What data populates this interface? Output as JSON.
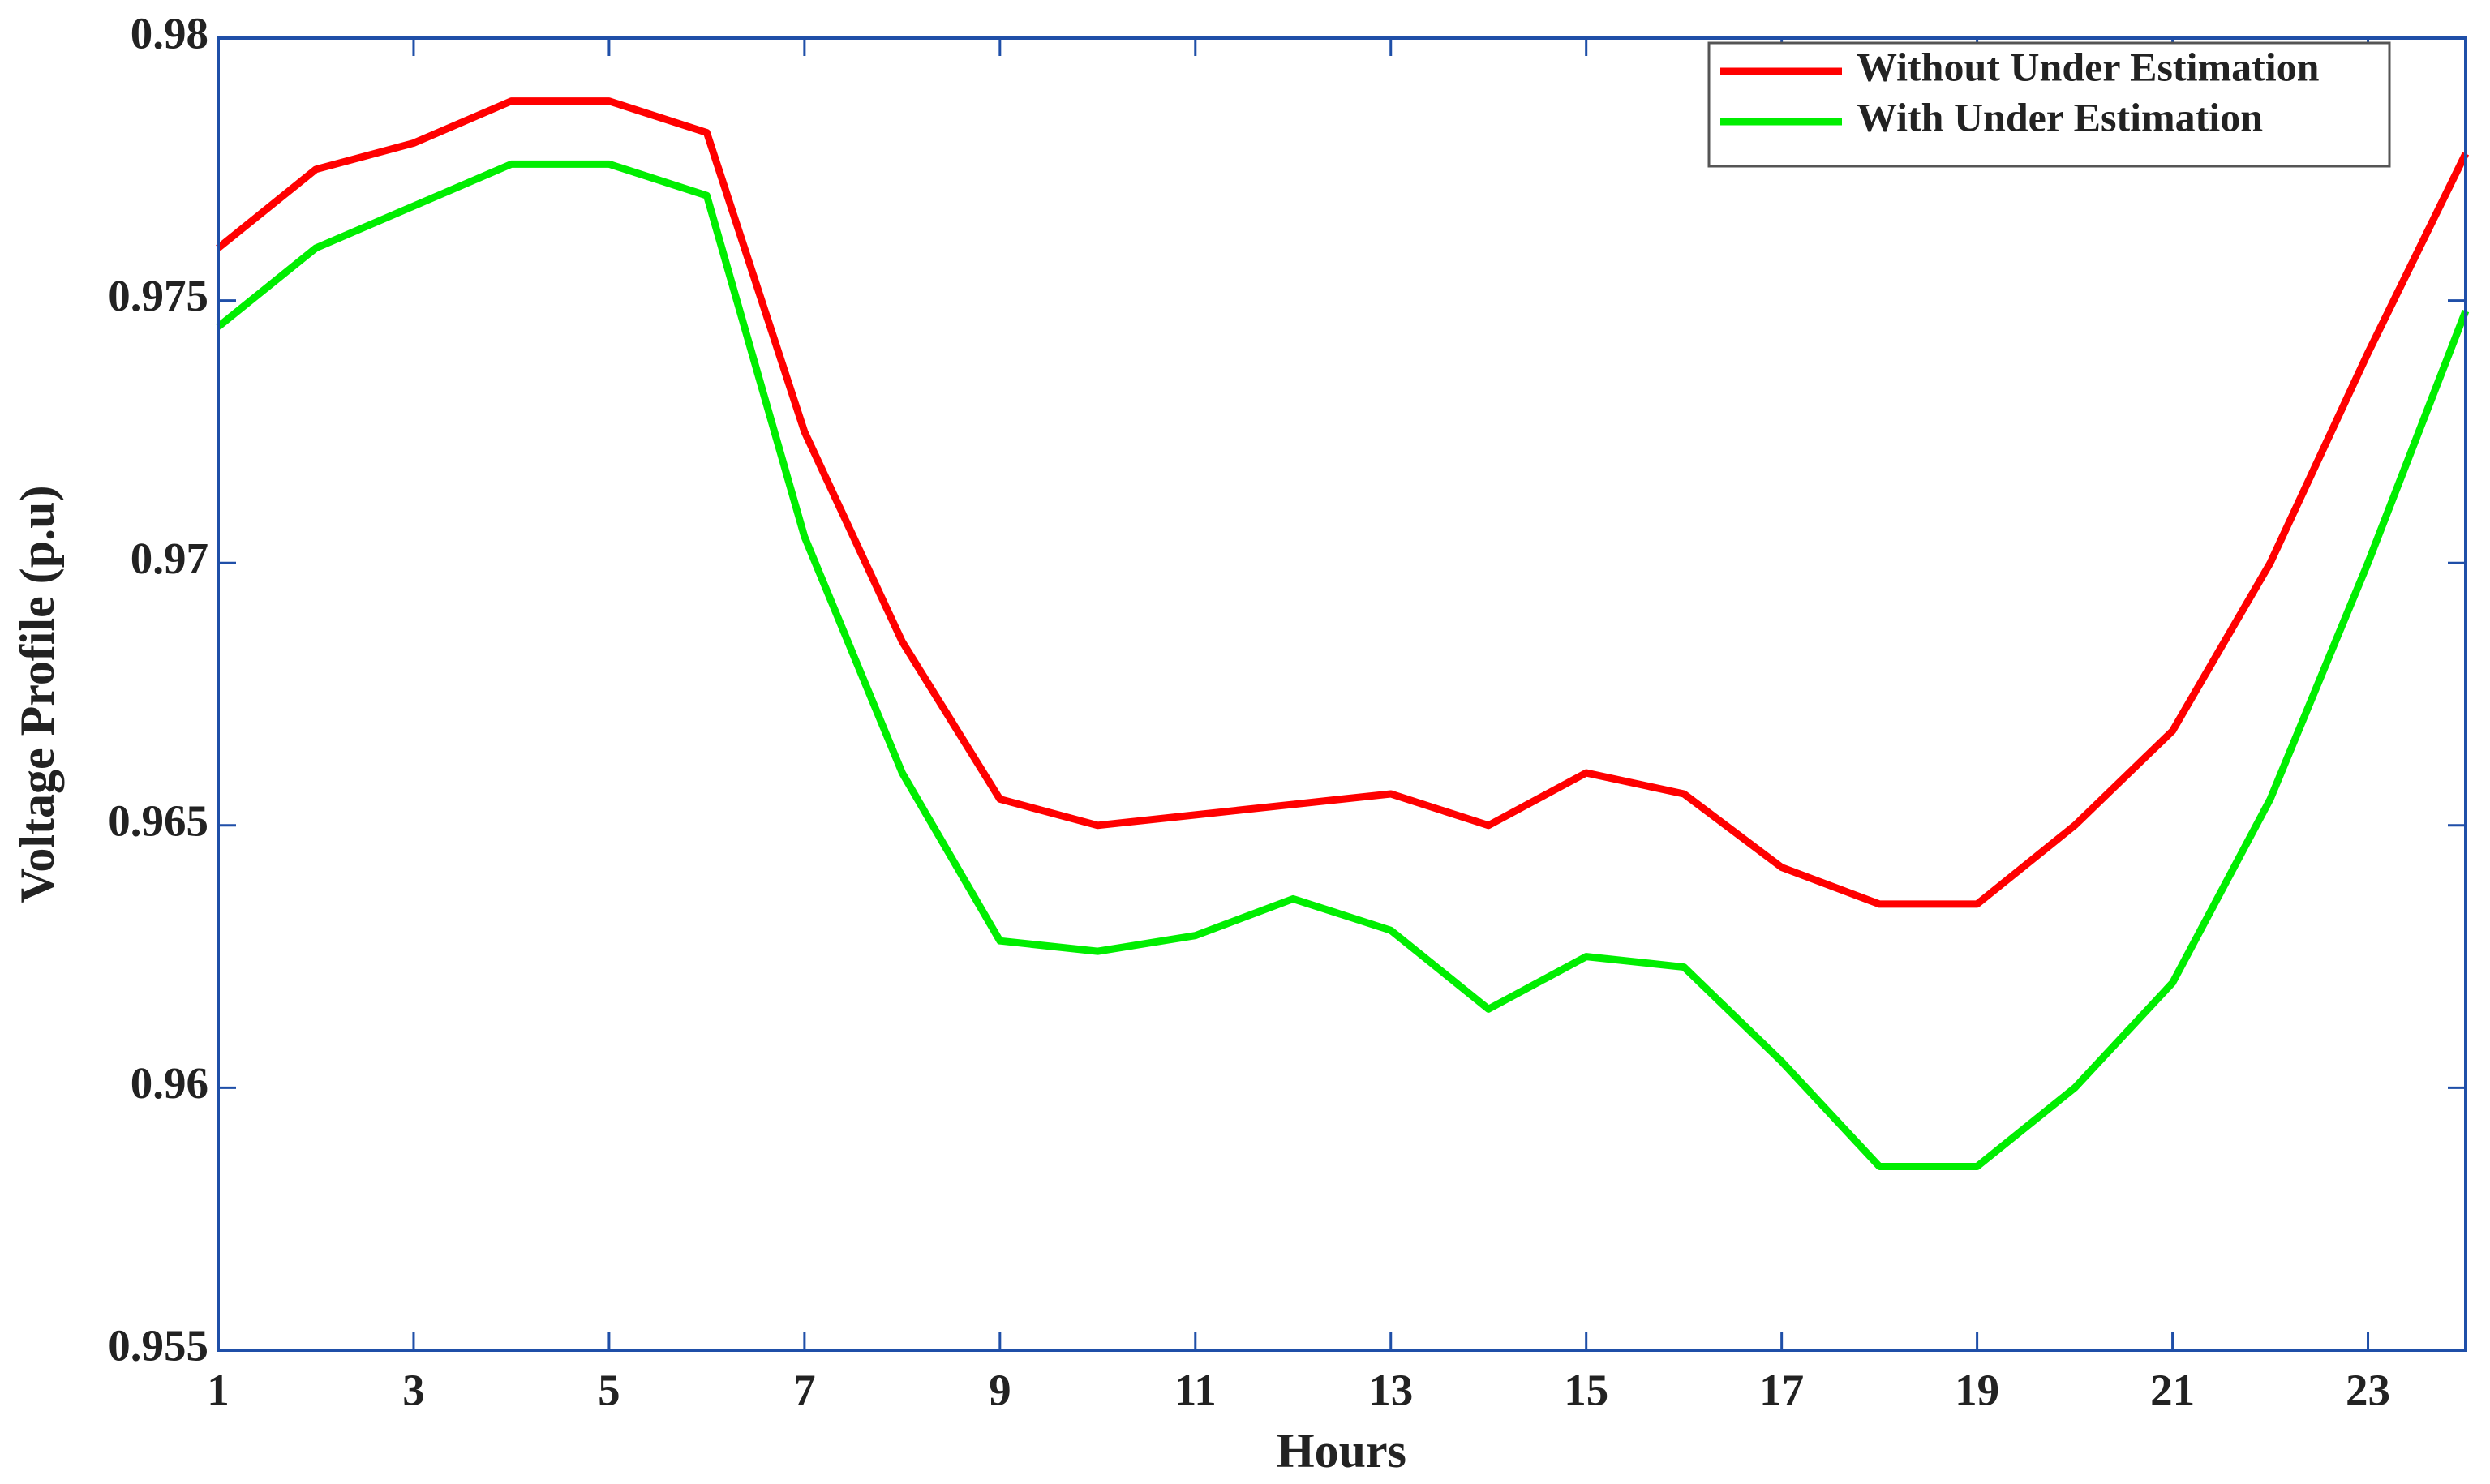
{
  "chart_data": {
    "type": "line",
    "x_label": "Hours",
    "y_label": "Voltage Profile (p.u)",
    "x": [
      1,
      2,
      3,
      4,
      5,
      6,
      7,
      8,
      9,
      10,
      11,
      12,
      13,
      14,
      15,
      16,
      17,
      18,
      19,
      20,
      21,
      22,
      23,
      24
    ],
    "series": [
      {
        "name": "Without Under Estimation",
        "color": "#ff0000",
        "values": [
          0.976,
          0.9775,
          0.978,
          0.9788,
          0.9788,
          0.9782,
          0.9725,
          0.9685,
          0.9655,
          0.965,
          0.9652,
          0.9654,
          0.9656,
          0.965,
          0.966,
          0.9656,
          0.9642,
          0.9635,
          0.9635,
          0.965,
          0.9668,
          0.97,
          0.974,
          0.9778
        ]
      },
      {
        "name": "With Under Estimation",
        "color": "#00ee00",
        "values": [
          0.9745,
          0.976,
          0.9768,
          0.9776,
          0.9776,
          0.977,
          0.9705,
          0.966,
          0.9628,
          0.9626,
          0.9629,
          0.9636,
          0.963,
          0.9615,
          0.9625,
          0.9623,
          0.9605,
          0.9585,
          0.9585,
          0.96,
          0.962,
          0.9655,
          0.97,
          0.9748
        ]
      }
    ],
    "xlim": [
      1,
      24
    ],
    "xticks": [
      1,
      3,
      5,
      7,
      9,
      11,
      13,
      15,
      17,
      19,
      21,
      23
    ],
    "ylim": [
      0.955,
      0.98
    ],
    "yticks": [
      0.955,
      0.96,
      0.965,
      0.97,
      0.975,
      0.98
    ],
    "legend_position": "upper right",
    "axis_color": "#1f4fa8"
  }
}
